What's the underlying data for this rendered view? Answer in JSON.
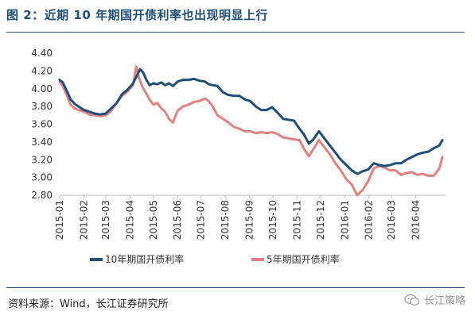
{
  "title": "图 2：近期 10 年期国开债利率也出现明显上行",
  "source": "资料来源：Wind，长江证券研究所",
  "watermark": "长江策略",
  "chart_data": {
    "type": "line",
    "title": "",
    "xlabel": "",
    "ylabel": "",
    "ylim": [
      2.8,
      4.4
    ],
    "yticks": [
      2.8,
      3.0,
      3.2,
      3.4,
      3.6,
      3.8,
      4.0,
      4.2,
      4.4
    ],
    "yticklabels": [
      "2.80",
      "3.00",
      "3.20",
      "3.40",
      "3.60",
      "3.80",
      "4.00",
      "4.20",
      "4.40"
    ],
    "xlim": [
      "2015-01-01",
      "2016-05-06"
    ],
    "xticks": [
      "2015-01-01",
      "2015-02-01",
      "2015-03-01",
      "2015-04-01",
      "2015-05-01",
      "2015-06-01",
      "2015-07-01",
      "2015-08-01",
      "2015-09-01",
      "2015-10-01",
      "2015-11-01",
      "2015-12-01",
      "2016-01-01",
      "2016-02-01",
      "2016-03-01",
      "2016-04-01"
    ],
    "xticklabels": [
      "2015-01",
      "2015-02",
      "2015-03",
      "2015-04",
      "2015-05",
      "2015-06",
      "2015-07",
      "2015-08",
      "2015-09",
      "2015-10",
      "2015-11",
      "2015-12",
      "2016-01",
      "2016-02",
      "2016-03",
      "2016-04"
    ],
    "grid": false,
    "legend_position": "bottom",
    "series": [
      {
        "name": "10年期国开债利率",
        "color": "#1f4e79",
        "x": [
          "2015-01-01",
          "2015-01-05",
          "2015-01-10",
          "2015-01-15",
          "2015-01-20",
          "2015-01-25",
          "2015-02-01",
          "2015-02-08",
          "2015-02-15",
          "2015-02-22",
          "2015-03-01",
          "2015-03-08",
          "2015-03-15",
          "2015-03-22",
          "2015-03-29",
          "2015-04-05",
          "2015-04-10",
          "2015-04-14",
          "2015-04-18",
          "2015-04-22",
          "2015-04-26",
          "2015-05-01",
          "2015-05-06",
          "2015-05-11",
          "2015-05-16",
          "2015-05-21",
          "2015-05-26",
          "2015-06-01",
          "2015-06-08",
          "2015-06-15",
          "2015-06-22",
          "2015-06-29",
          "2015-07-06",
          "2015-07-11",
          "2015-07-16",
          "2015-07-22",
          "2015-07-29",
          "2015-08-05",
          "2015-08-12",
          "2015-08-19",
          "2015-08-26",
          "2015-09-02",
          "2015-09-09",
          "2015-09-16",
          "2015-09-23",
          "2015-09-30",
          "2015-10-07",
          "2015-10-14",
          "2015-10-21",
          "2015-10-28",
          "2015-11-04",
          "2015-11-10",
          "2015-11-16",
          "2015-11-22",
          "2015-11-29",
          "2015-12-06",
          "2015-12-13",
          "2015-12-20",
          "2015-12-27",
          "2016-01-03",
          "2016-01-10",
          "2016-01-17",
          "2016-01-24",
          "2016-01-31",
          "2016-02-07",
          "2016-02-14",
          "2016-02-21",
          "2016-02-28",
          "2016-03-06",
          "2016-03-13",
          "2016-03-20",
          "2016-03-27",
          "2016-04-03",
          "2016-04-10",
          "2016-04-17",
          "2016-04-24",
          "2016-05-01",
          "2016-05-05"
        ],
        "y": [
          4.1,
          4.07,
          3.98,
          3.88,
          3.83,
          3.8,
          3.76,
          3.74,
          3.72,
          3.71,
          3.72,
          3.78,
          3.84,
          3.94,
          3.99,
          4.06,
          4.15,
          4.22,
          4.18,
          4.1,
          4.04,
          4.06,
          4.05,
          4.07,
          4.04,
          4.06,
          4.03,
          4.08,
          4.1,
          4.1,
          4.11,
          4.09,
          4.08,
          4.05,
          4.04,
          4.03,
          3.96,
          3.93,
          3.92,
          3.92,
          3.88,
          3.86,
          3.8,
          3.76,
          3.76,
          3.79,
          3.73,
          3.66,
          3.65,
          3.64,
          3.55,
          3.48,
          3.38,
          3.43,
          3.52,
          3.44,
          3.36,
          3.28,
          3.2,
          3.14,
          3.08,
          3.04,
          3.07,
          3.09,
          3.16,
          3.14,
          3.13,
          3.14,
          3.16,
          3.16,
          3.2,
          3.23,
          3.26,
          3.28,
          3.29,
          3.33,
          3.36,
          3.42
        ]
      },
      {
        "name": "5年期国开债利率",
        "color": "#e08282",
        "x": [
          "2015-01-01",
          "2015-01-05",
          "2015-01-10",
          "2015-01-15",
          "2015-01-20",
          "2015-01-25",
          "2015-02-01",
          "2015-02-08",
          "2015-02-15",
          "2015-02-22",
          "2015-03-01",
          "2015-03-08",
          "2015-03-15",
          "2015-03-22",
          "2015-03-29",
          "2015-04-05",
          "2015-04-09",
          "2015-04-13",
          "2015-04-17",
          "2015-04-21",
          "2015-04-26",
          "2015-05-01",
          "2015-05-06",
          "2015-05-11",
          "2015-05-16",
          "2015-05-21",
          "2015-05-26",
          "2015-06-01",
          "2015-06-08",
          "2015-06-15",
          "2015-06-22",
          "2015-06-29",
          "2015-07-06",
          "2015-07-11",
          "2015-07-16",
          "2015-07-22",
          "2015-07-29",
          "2015-08-05",
          "2015-08-12",
          "2015-08-19",
          "2015-08-26",
          "2015-09-02",
          "2015-09-09",
          "2015-09-16",
          "2015-09-23",
          "2015-09-30",
          "2015-10-07",
          "2015-10-14",
          "2015-10-21",
          "2015-10-28",
          "2015-11-04",
          "2015-11-10",
          "2015-11-16",
          "2015-11-22",
          "2015-11-29",
          "2015-12-06",
          "2015-12-13",
          "2015-12-20",
          "2015-12-27",
          "2016-01-03",
          "2016-01-10",
          "2016-01-17",
          "2016-01-24",
          "2016-01-31",
          "2016-02-07",
          "2016-02-14",
          "2016-02-21",
          "2016-02-28",
          "2016-03-06",
          "2016-03-13",
          "2016-03-20",
          "2016-03-27",
          "2016-04-03",
          "2016-04-10",
          "2016-04-17",
          "2016-04-24",
          "2016-05-01",
          "2016-05-05"
        ],
        "y": [
          4.08,
          4.03,
          3.93,
          3.82,
          3.78,
          3.76,
          3.74,
          3.71,
          3.7,
          3.69,
          3.7,
          3.75,
          3.84,
          3.92,
          3.97,
          4.04,
          4.25,
          4.11,
          4.02,
          3.96,
          3.88,
          3.82,
          3.84,
          3.78,
          3.74,
          3.66,
          3.62,
          3.75,
          3.8,
          3.82,
          3.85,
          3.86,
          3.89,
          3.86,
          3.8,
          3.7,
          3.66,
          3.62,
          3.57,
          3.55,
          3.52,
          3.52,
          3.5,
          3.51,
          3.5,
          3.51,
          3.49,
          3.45,
          3.44,
          3.43,
          3.42,
          3.32,
          3.24,
          3.32,
          3.42,
          3.34,
          3.26,
          3.16,
          3.08,
          2.98,
          2.92,
          2.8,
          2.86,
          2.96,
          3.1,
          3.13,
          3.11,
          3.08,
          3.08,
          3.03,
          3.05,
          3.06,
          3.03,
          3.04,
          3.02,
          3.02,
          3.1,
          3.23
        ]
      }
    ]
  }
}
